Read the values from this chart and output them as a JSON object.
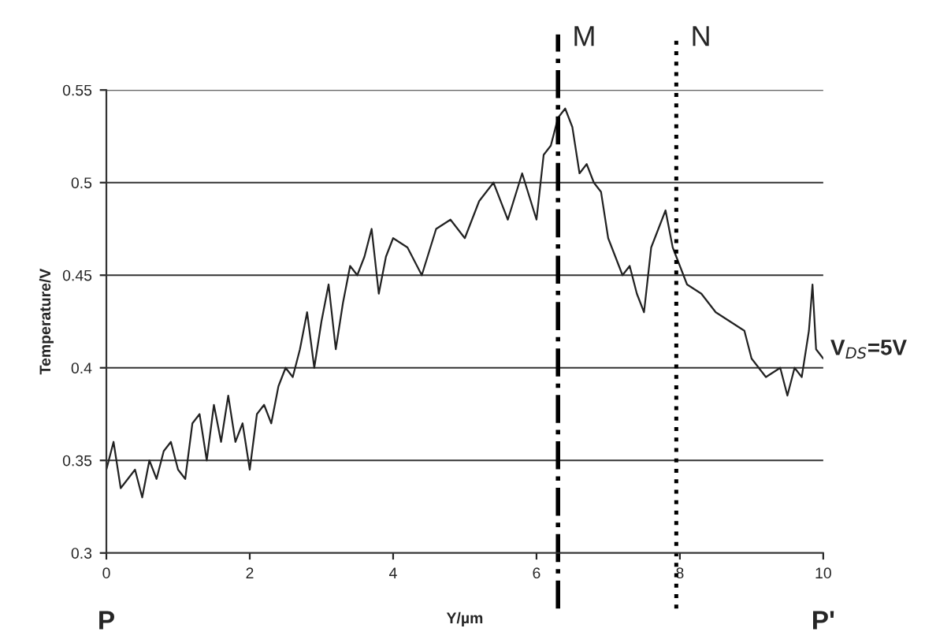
{
  "chart_data": {
    "type": "line",
    "xlabel": "Y/µm",
    "ylabel": "Temperature/V",
    "xlim": [
      0,
      10
    ],
    "xticks": [
      0,
      2,
      4,
      6,
      8,
      10
    ],
    "ylim": [
      0.3,
      0.55
    ],
    "yticks": [
      0.3,
      0.35,
      0.4,
      0.45,
      0.5,
      0.55
    ],
    "grid": "y",
    "marker": "none",
    "line_style": "solid",
    "series": [
      {
        "color": "#222222",
        "x": [
          0,
          0.1,
          0.2,
          0.3,
          0.4,
          0.5,
          0.6,
          0.7,
          0.8,
          0.9,
          1.0,
          1.1,
          1.2,
          1.3,
          1.4,
          1.5,
          1.6,
          1.7,
          1.8,
          1.9,
          2.0,
          2.1,
          2.2,
          2.3,
          2.4,
          2.5,
          2.6,
          2.7,
          2.8,
          2.9,
          3.0,
          3.1,
          3.2,
          3.3,
          3.4,
          3.5,
          3.6,
          3.7,
          3.8,
          3.9,
          4.0,
          4.2,
          4.4,
          4.6,
          4.8,
          5.0,
          5.2,
          5.4,
          5.6,
          5.8,
          6.0,
          6.1,
          6.2,
          6.3,
          6.4,
          6.5,
          6.6,
          6.7,
          6.8,
          6.9,
          7.0,
          7.1,
          7.2,
          7.3,
          7.4,
          7.5,
          7.6,
          7.7,
          7.8,
          7.9,
          8.0,
          8.1,
          8.3,
          8.5,
          8.7,
          8.9,
          9.0,
          9.2,
          9.4,
          9.5,
          9.6,
          9.7,
          9.8,
          9.85,
          9.9,
          10.0
        ],
        "values": [
          0.345,
          0.36,
          0.335,
          0.34,
          0.345,
          0.33,
          0.35,
          0.34,
          0.355,
          0.36,
          0.345,
          0.34,
          0.37,
          0.375,
          0.35,
          0.38,
          0.36,
          0.385,
          0.36,
          0.37,
          0.345,
          0.375,
          0.38,
          0.37,
          0.39,
          0.4,
          0.395,
          0.41,
          0.43,
          0.4,
          0.425,
          0.445,
          0.41,
          0.435,
          0.455,
          0.45,
          0.46,
          0.475,
          0.44,
          0.46,
          0.47,
          0.465,
          0.45,
          0.475,
          0.48,
          0.47,
          0.49,
          0.5,
          0.48,
          0.505,
          0.48,
          0.515,
          0.52,
          0.535,
          0.54,
          0.53,
          0.505,
          0.51,
          0.5,
          0.495,
          0.47,
          0.46,
          0.45,
          0.455,
          0.44,
          0.43,
          0.465,
          0.475,
          0.485,
          0.465,
          0.455,
          0.445,
          0.44,
          0.43,
          0.425,
          0.42,
          0.405,
          0.395,
          0.4,
          0.385,
          0.4,
          0.395,
          0.42,
          0.445,
          0.41,
          0.405
        ]
      }
    ],
    "ref_lines": [
      {
        "axis": "x",
        "value": 6.3,
        "label": "M",
        "line_style": "dashdot",
        "color": "#000000"
      },
      {
        "axis": "x",
        "value": 7.95,
        "label": "N",
        "line_style": "dotted",
        "color": "#000000"
      }
    ],
    "annotations": [
      "V$_{DS}$=5V",
      "P",
      "P'"
    ]
  }
}
